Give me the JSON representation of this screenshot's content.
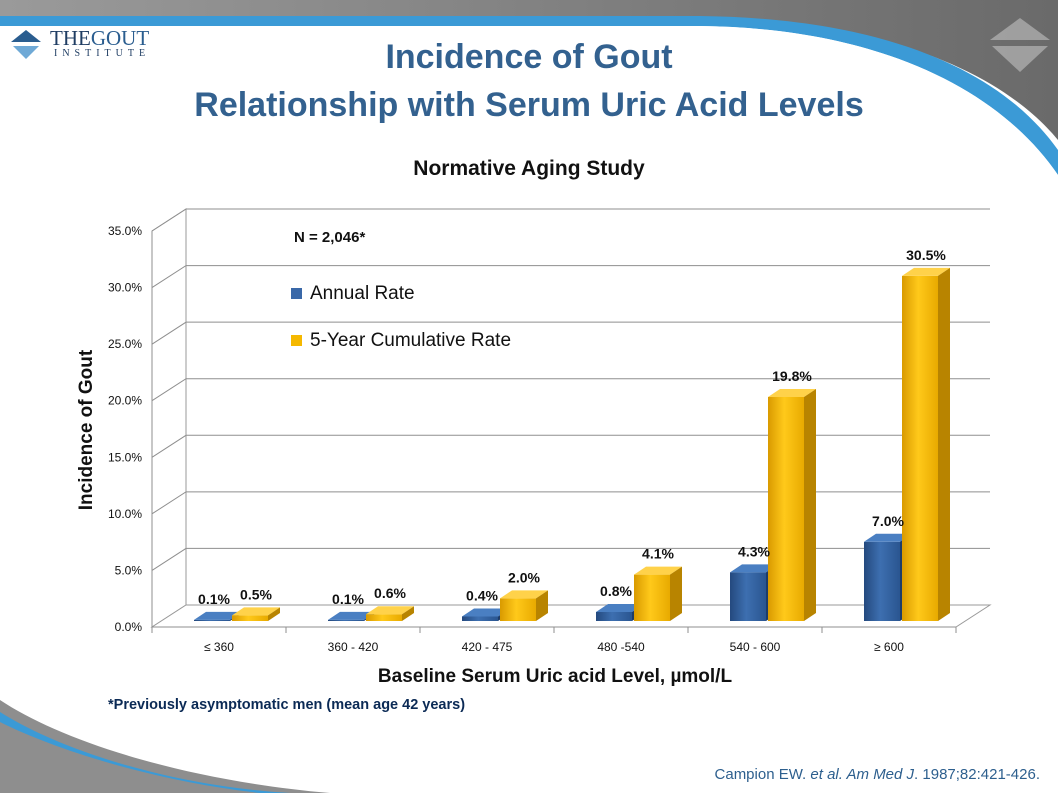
{
  "logo": {
    "text_the": "THE",
    "text_gout": "GOUT",
    "text_institute": "INSTITUTE"
  },
  "slide": {
    "title_line1": "Incidence of Gout",
    "title_line2": "Relationship with Serum Uric Acid Levels",
    "footnote": "*Previously asymptomatic men (mean age 42 years)",
    "citation_author": "Campion EW. ",
    "citation_etal": "et al. Am Med J",
    "citation_rest": ". 1987;82:421-426."
  },
  "colors": {
    "annual": "#2f5e9e",
    "cumulative": "#f5b800",
    "title": "#33618f",
    "accent_band": "#3b9ad6"
  },
  "chart_data": {
    "type": "bar",
    "title": "Normative Aging Study",
    "annotation": "N = 2,046*",
    "xlabel": "Baseline Serum Uric acid Level, µmol/L",
    "ylabel": "Incidence of Gout",
    "categories": [
      "≤ 360",
      "360 - 420",
      "420 - 475",
      "480  -540",
      "540 - 600",
      "≥ 600"
    ],
    "series": [
      {
        "name": "Annual Rate",
        "values": [
          0.1,
          0.1,
          0.4,
          0.8,
          4.3,
          7.0
        ],
        "labels": [
          "0.1%",
          "0.1%",
          "0.4%",
          "0.8%",
          "4.3%",
          "7.0%"
        ]
      },
      {
        "name": "5-Year Cumulative Rate",
        "values": [
          0.5,
          0.6,
          2.0,
          4.1,
          19.8,
          30.5
        ],
        "labels": [
          "0.5%",
          "0.6%",
          "2.0%",
          "4.1%",
          "19.8%",
          "30.5%"
        ]
      }
    ],
    "yticks": [
      "0.0%",
      "5.0%",
      "10.0%",
      "15.0%",
      "20.0%",
      "25.0%",
      "30.0%",
      "35.0%"
    ],
    "ylim": [
      0,
      35
    ],
    "grid": true,
    "legend_position": "top-left"
  }
}
